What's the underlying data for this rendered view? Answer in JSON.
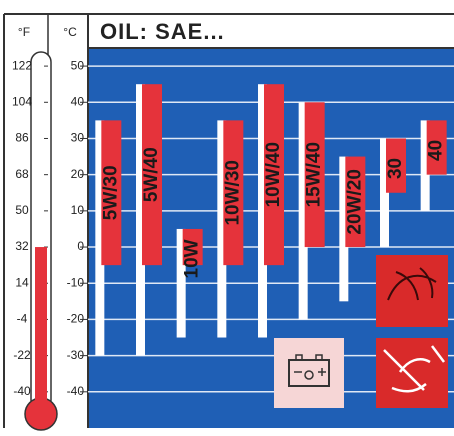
{
  "chart_data": {
    "type": "range-bar",
    "title": "OIL: SAE...",
    "y_unit": "°C",
    "y2_unit": "°F",
    "categories": [
      "5W/30",
      "5W/40",
      "10W",
      "10W/30",
      "10W/40",
      "15W/40",
      "20W/20",
      "30",
      "40"
    ],
    "low": [
      -30,
      -30,
      -25,
      -25,
      -25,
      -20,
      -15,
      0,
      10
    ],
    "high": [
      35,
      45,
      5,
      35,
      45,
      40,
      25,
      30,
      35
    ],
    "red_low": [
      -5,
      -5,
      -5,
      -5,
      -5,
      0,
      0,
      15,
      20
    ],
    "range_color": "#ffffff",
    "red_color": "#e5333b",
    "background": "#1f5fb5",
    "ylim": [
      -50,
      55
    ],
    "yticks": [
      -40,
      -30,
      -20,
      -10,
      0,
      10,
      20,
      30,
      40,
      50
    ],
    "y2lim": [
      -58,
      131
    ],
    "y2ticks": [
      -40,
      -22,
      -4,
      14,
      32,
      50,
      68,
      86,
      104,
      122
    ],
    "thermometer_level": 0,
    "grid": true
  }
}
